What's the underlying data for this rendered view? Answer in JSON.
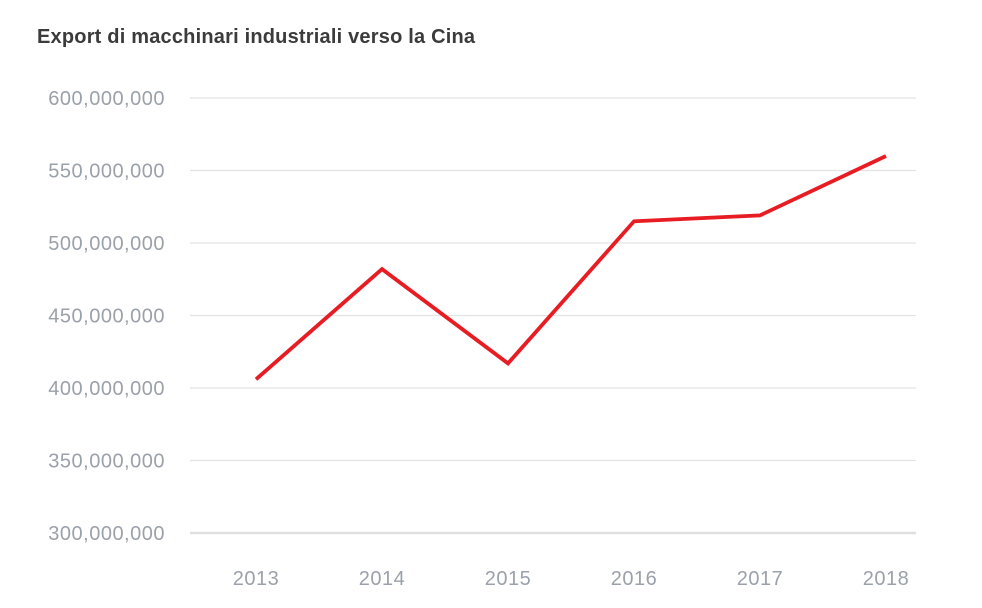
{
  "page": {
    "background_color": "#ffffff"
  },
  "chart_data": {
    "type": "line",
    "title": "Export di macchinari industriali verso la Cina",
    "xlabel": "",
    "ylabel": "",
    "x": [
      2013,
      2014,
      2015,
      2016,
      2017,
      2018
    ],
    "xtick_labels": [
      "2013",
      "2014",
      "2015",
      "2016",
      "2017",
      "2018"
    ],
    "series": [
      {
        "name": "Export di macchinari industriali verso la Cina",
        "values": [
          406000000,
          482000000,
          417000000,
          515000000,
          519000000,
          560000000
        ],
        "color": "#e81c23"
      }
    ],
    "ylim": [
      300000000,
      600000000
    ],
    "yticks": [
      300000000,
      350000000,
      400000000,
      450000000,
      500000000,
      550000000,
      600000000
    ],
    "ytick_labels": [
      "300,000,000",
      "350,000,000",
      "400,000,000",
      "450,000,000",
      "500,000,000",
      "550,000,000",
      "600,000,000"
    ],
    "grid": "horizontal",
    "legend_position": "none",
    "colors": {
      "line": "#e81c23",
      "gridline": "#e3e3e3",
      "baseline": "#e0e0e0",
      "tick_text": "#9ba1aa",
      "title_text": "#3b3b3b"
    }
  }
}
